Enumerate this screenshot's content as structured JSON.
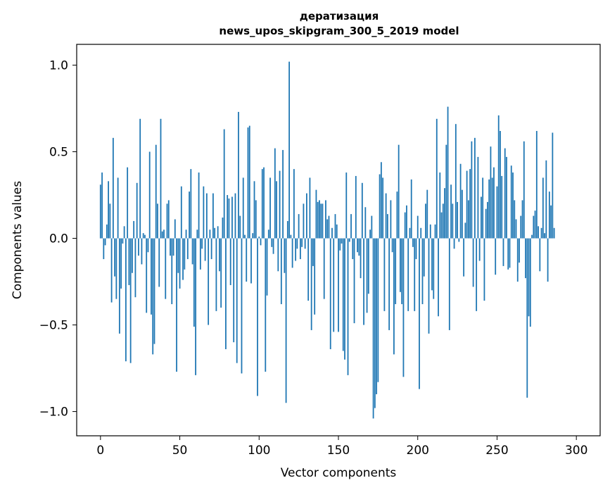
{
  "chart_data": {
    "type": "bar",
    "title": "дератизация",
    "subtitle": "news_upos_skipgram_300_5_2019 model",
    "xlabel": "Vector components",
    "ylabel": "Components values",
    "xlim": [
      -15,
      315
    ],
    "ylim": [
      -1.14,
      1.12
    ],
    "xticks": [
      0,
      50,
      100,
      150,
      200,
      250,
      300
    ],
    "yticks": [
      -1.0,
      -0.5,
      0.0,
      0.5,
      1.0
    ],
    "ytick_labels": [
      "−1.0",
      "−0.5",
      "0.0",
      "0.5",
      "1.0"
    ],
    "grid": false,
    "legend": "none",
    "color": "#1f77b4",
    "values": [
      0.31,
      0.38,
      -0.12,
      -0.04,
      0.08,
      0.33,
      0.2,
      -0.37,
      0.58,
      -0.22,
      -0.35,
      0.35,
      -0.55,
      -0.29,
      -0.03,
      0.07,
      -0.71,
      0.41,
      -0.27,
      -0.72,
      -0.2,
      0.1,
      -0.34,
      0.32,
      -0.1,
      0.69,
      -0.15,
      0.03,
      0.02,
      -0.43,
      -0.08,
      0.5,
      -0.44,
      -0.67,
      -0.61,
      0.54,
      0.2,
      -0.28,
      0.69,
      0.04,
      0.05,
      -0.35,
      0.2,
      0.22,
      -0.1,
      -0.38,
      -0.1,
      0.11,
      -0.77,
      -0.2,
      -0.29,
      0.3,
      -0.24,
      -0.18,
      0.05,
      -0.12,
      0.27,
      0.4,
      -0.15,
      -0.51,
      -0.79,
      0.05,
      0.38,
      -0.18,
      -0.06,
      0.3,
      -0.13,
      0.26,
      -0.5,
      0.05,
      -0.12,
      0.26,
      0.06,
      -0.42,
      0.07,
      -0.19,
      -0.4,
      0.12,
      0.63,
      -0.64,
      0.25,
      0.23,
      -0.27,
      0.24,
      -0.6,
      0.26,
      -0.72,
      0.73,
      0.13,
      -0.78,
      0.35,
      0.02,
      -0.25,
      0.64,
      0.65,
      -0.26,
      0.03,
      0.33,
      0.22,
      -0.91,
      0.01,
      -0.04,
      0.4,
      0.41,
      -0.77,
      -0.33,
      0.05,
      0.35,
      -0.05,
      -0.09,
      0.52,
      0.33,
      -0.19,
      0.39,
      -0.38,
      0.51,
      -0.2,
      -0.95,
      0.1,
      1.02,
      0.02,
      -0.17,
      0.4,
      -0.13,
      -0.06,
      0.14,
      -0.12,
      -0.05,
      0.2,
      -0.06,
      0.26,
      -0.36,
      0.35,
      -0.53,
      -0.16,
      -0.44,
      0.28,
      0.21,
      0.22,
      0.2,
      0.2,
      -0.35,
      0.22,
      0.11,
      0.13,
      -0.64,
      0.06,
      -0.54,
      0.14,
      0.08,
      -0.54,
      -0.07,
      -0.03,
      -0.65,
      -0.7,
      0.38,
      -0.79,
      -0.02,
      0.14,
      -0.12,
      -0.49,
      0.36,
      -0.08,
      -0.1,
      -0.23,
      0.32,
      -0.5,
      0.18,
      -0.43,
      -0.32,
      0.05,
      0.13,
      -1.04,
      -0.98,
      -0.9,
      -0.83,
      0.37,
      0.44,
      0.35,
      -0.42,
      0.26,
      0.14,
      -0.53,
      0.22,
      -0.08,
      -0.67,
      -0.38,
      0.27,
      0.54,
      -0.31,
      -0.38,
      -0.8,
      0.15,
      0.19,
      -0.42,
      0.06,
      0.34,
      -0.05,
      -0.42,
      -0.12,
      0.13,
      -0.87,
      0.06,
      -0.38,
      -0.22,
      0.2,
      0.28,
      -0.55,
      0.08,
      -0.3,
      -0.35,
      0.08,
      0.69,
      -0.45,
      0.38,
      0.15,
      0.2,
      0.29,
      0.54,
      0.76,
      -0.53,
      0.31,
      0.2,
      -0.06,
      0.66,
      0.21,
      -0.02,
      0.43,
      0.28,
      -0.22,
      0.09,
      0.39,
      0.22,
      0.4,
      0.56,
      -0.28,
      0.58,
      -0.42,
      0.47,
      -0.13,
      0.24,
      0.35,
      -0.36,
      0.17,
      0.21,
      0.34,
      0.53,
      0.35,
      0.41,
      -0.21,
      0.3,
      0.71,
      0.62,
      0.36,
      -0.16,
      0.52,
      0.47,
      -0.18,
      -0.17,
      0.42,
      0.38,
      0.22,
      0.11,
      -0.25,
      -0.14,
      0.13,
      0.22,
      0.56,
      -0.23,
      -0.92,
      -0.45,
      -0.51,
      0.02,
      0.13,
      0.16,
      0.62,
      0.07,
      -0.19,
      0.06,
      0.35,
      0.03,
      0.45,
      -0.25,
      0.27,
      0.19,
      0.61,
      0.06
    ]
  }
}
